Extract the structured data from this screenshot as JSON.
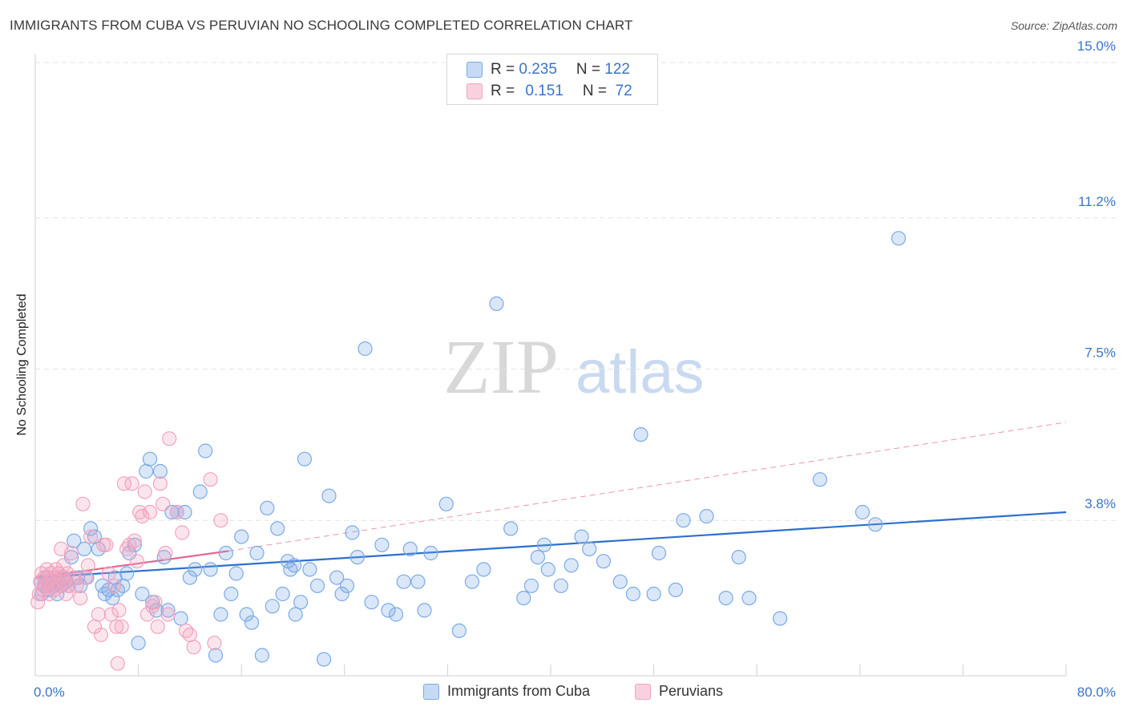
{
  "title": "IMMIGRANTS FROM CUBA VS PERUVIAN NO SCHOOLING COMPLETED CORRELATION CHART",
  "source": "Source: ZipAtlas.com",
  "watermark": {
    "zip": "ZIP",
    "atlas": "atlas"
  },
  "legend": {
    "rows": [
      {
        "r_label": "R = ",
        "r_value": "0.235",
        "n_label": "N = ",
        "n_value": "122"
      },
      {
        "r_label": "R = ",
        "r_value": "0.151",
        "n_label": "N = ",
        "n_value": " 72"
      }
    ]
  },
  "chart_data": {
    "type": "scatter",
    "xlabel": "",
    "ylabel": "No Schooling Completed",
    "xlim": [
      0,
      80
    ],
    "ylim": [
      0,
      15
    ],
    "x_tick_labels": [
      "0.0%",
      "80.0%"
    ],
    "y_ticks": [
      {
        "value": 3.8,
        "label": "3.8%"
      },
      {
        "value": 7.5,
        "label": "7.5%"
      },
      {
        "value": 11.2,
        "label": "11.2%"
      },
      {
        "value": 15.0,
        "label": "15.0%"
      }
    ],
    "grid": "horizontal dashed",
    "legend_position": "top-center",
    "colors": {
      "cuba": "#7aaae6",
      "peru": "#f2a3bd",
      "cuba_line": "#2d6fcf",
      "peru_line": "#e36591"
    },
    "series": [
      {
        "name": "Immigrants from Cuba",
        "R": 0.235,
        "N": 122,
        "trend": {
          "x": [
            0,
            80
          ],
          "y": [
            2.4,
            4.0
          ]
        },
        "points": [
          [
            0.4,
            2.3
          ],
          [
            0.5,
            2.0
          ],
          [
            0.7,
            2.2
          ],
          [
            0.9,
            2.4
          ],
          [
            1.0,
            2.1
          ],
          [
            1.2,
            2.3
          ],
          [
            1.4,
            2.2
          ],
          [
            1.5,
            2.4
          ],
          [
            1.7,
            2.0
          ],
          [
            1.8,
            2.3
          ],
          [
            2.0,
            2.2
          ],
          [
            2.2,
            2.4
          ],
          [
            2.4,
            2.3
          ],
          [
            2.6,
            2.2
          ],
          [
            2.8,
            2.9
          ],
          [
            3.0,
            3.3
          ],
          [
            3.3,
            2.4
          ],
          [
            3.5,
            2.2
          ],
          [
            3.8,
            3.1
          ],
          [
            4.0,
            2.4
          ],
          [
            4.3,
            3.6
          ],
          [
            4.6,
            3.4
          ],
          [
            4.9,
            3.1
          ],
          [
            5.2,
            2.2
          ],
          [
            5.4,
            2.0
          ],
          [
            5.7,
            2.1
          ],
          [
            6.0,
            1.9
          ],
          [
            6.2,
            2.4
          ],
          [
            6.4,
            2.1
          ],
          [
            6.8,
            2.2
          ],
          [
            7.1,
            2.5
          ],
          [
            7.3,
            3.0
          ],
          [
            7.7,
            3.2
          ],
          [
            8.0,
            0.8
          ],
          [
            8.3,
            2.0
          ],
          [
            8.6,
            5.0
          ],
          [
            8.9,
            5.3
          ],
          [
            9.1,
            1.8
          ],
          [
            9.4,
            1.6
          ],
          [
            9.7,
            5.0
          ],
          [
            10.0,
            2.9
          ],
          [
            10.3,
            1.6
          ],
          [
            10.6,
            4.0
          ],
          [
            11.0,
            4.0
          ],
          [
            11.3,
            1.4
          ],
          [
            11.6,
            4.0
          ],
          [
            12.0,
            2.4
          ],
          [
            12.4,
            2.6
          ],
          [
            12.8,
            4.5
          ],
          [
            13.2,
            5.5
          ],
          [
            13.6,
            2.6
          ],
          [
            14.0,
            0.5
          ],
          [
            14.4,
            1.5
          ],
          [
            14.8,
            3.0
          ],
          [
            15.2,
            2.0
          ],
          [
            15.6,
            2.5
          ],
          [
            16.0,
            3.4
          ],
          [
            16.4,
            1.5
          ],
          [
            16.8,
            1.3
          ],
          [
            17.2,
            3.0
          ],
          [
            17.6,
            0.5
          ],
          [
            18.0,
            4.1
          ],
          [
            18.4,
            1.7
          ],
          [
            18.8,
            3.6
          ],
          [
            19.2,
            2.0
          ],
          [
            19.6,
            2.8
          ],
          [
            19.8,
            2.6
          ],
          [
            20.2,
            1.5
          ],
          [
            20.6,
            1.8
          ],
          [
            20.9,
            5.3
          ],
          [
            21.3,
            2.6
          ],
          [
            21.9,
            2.2
          ],
          [
            22.4,
            0.4
          ],
          [
            22.8,
            4.4
          ],
          [
            23.4,
            2.4
          ],
          [
            23.8,
            2.0
          ],
          [
            24.2,
            2.2
          ],
          [
            24.6,
            3.5
          ],
          [
            25.0,
            2.9
          ],
          [
            25.6,
            8.0
          ],
          [
            26.1,
            1.8
          ],
          [
            26.9,
            3.2
          ],
          [
            27.4,
            1.6
          ],
          [
            28.0,
            1.5
          ],
          [
            28.6,
            2.3
          ],
          [
            29.1,
            3.1
          ],
          [
            29.7,
            2.3
          ],
          [
            30.2,
            1.6
          ],
          [
            30.7,
            3.0
          ],
          [
            31.9,
            4.2
          ],
          [
            32.9,
            1.1
          ],
          [
            33.9,
            2.3
          ],
          [
            34.8,
            2.6
          ],
          [
            35.8,
            9.1
          ],
          [
            36.9,
            3.6
          ],
          [
            37.9,
            1.9
          ],
          [
            38.5,
            2.2
          ],
          [
            39.0,
            2.9
          ],
          [
            39.5,
            3.2
          ],
          [
            39.8,
            2.6
          ],
          [
            40.8,
            2.2
          ],
          [
            41.6,
            2.7
          ],
          [
            42.4,
            3.4
          ],
          [
            43.0,
            3.1
          ],
          [
            44.1,
            2.8
          ],
          [
            45.4,
            2.3
          ],
          [
            46.4,
            2.0
          ],
          [
            47.0,
            5.9
          ],
          [
            48.0,
            2.0
          ],
          [
            48.4,
            3.0
          ],
          [
            49.7,
            2.1
          ],
          [
            50.3,
            3.8
          ],
          [
            52.1,
            3.9
          ],
          [
            53.6,
            1.9
          ],
          [
            54.6,
            2.9
          ],
          [
            55.4,
            1.9
          ],
          [
            57.8,
            1.4
          ],
          [
            60.9,
            4.8
          ],
          [
            64.2,
            4.0
          ],
          [
            65.2,
            3.7
          ],
          [
            67.0,
            10.7
          ],
          [
            20.1,
            2.7
          ]
        ]
      },
      {
        "name": "Peruvians",
        "R": 0.151,
        "N": 72,
        "trend": {
          "x": [
            0,
            15
          ],
          "y": [
            2.4,
            3.05
          ]
        },
        "dashed_extension": {
          "x": [
            15,
            80
          ],
          "y": [
            3.05,
            6.2
          ]
        },
        "points": [
          [
            0.2,
            1.8
          ],
          [
            0.3,
            2.0
          ],
          [
            0.4,
            2.3
          ],
          [
            0.5,
            2.5
          ],
          [
            0.6,
            2.1
          ],
          [
            0.7,
            2.4
          ],
          [
            0.8,
            2.2
          ],
          [
            0.9,
            2.6
          ],
          [
            1.0,
            2.3
          ],
          [
            1.1,
            2.0
          ],
          [
            1.2,
            2.5
          ],
          [
            1.3,
            2.2
          ],
          [
            1.4,
            2.4
          ],
          [
            1.5,
            2.1
          ],
          [
            1.6,
            2.6
          ],
          [
            1.7,
            2.3
          ],
          [
            1.8,
            2.5
          ],
          [
            1.9,
            2.2
          ],
          [
            2.0,
            3.1
          ],
          [
            2.1,
            2.4
          ],
          [
            2.2,
            2.7
          ],
          [
            2.3,
            2.3
          ],
          [
            2.4,
            2.0
          ],
          [
            2.5,
            2.5
          ],
          [
            2.6,
            2.2
          ],
          [
            2.8,
            3.0
          ],
          [
            3.0,
            2.4
          ],
          [
            3.2,
            2.2
          ],
          [
            3.5,
            1.9
          ],
          [
            3.7,
            4.2
          ],
          [
            3.9,
            2.4
          ],
          [
            4.1,
            2.7
          ],
          [
            4.3,
            3.4
          ],
          [
            4.6,
            1.2
          ],
          [
            4.9,
            1.5
          ],
          [
            5.1,
            1.0
          ],
          [
            5.3,
            3.2
          ],
          [
            5.5,
            3.2
          ],
          [
            5.7,
            2.5
          ],
          [
            5.9,
            1.5
          ],
          [
            6.1,
            2.2
          ],
          [
            6.3,
            1.2
          ],
          [
            6.5,
            1.6
          ],
          [
            6.7,
            1.2
          ],
          [
            6.9,
            4.7
          ],
          [
            7.1,
            3.1
          ],
          [
            7.3,
            3.2
          ],
          [
            7.5,
            4.7
          ],
          [
            7.7,
            3.3
          ],
          [
            7.9,
            2.8
          ],
          [
            8.1,
            4.0
          ],
          [
            8.3,
            3.9
          ],
          [
            8.5,
            4.5
          ],
          [
            8.7,
            1.5
          ],
          [
            8.9,
            4.0
          ],
          [
            9.1,
            1.7
          ],
          [
            9.3,
            1.8
          ],
          [
            9.5,
            1.2
          ],
          [
            9.7,
            4.7
          ],
          [
            9.9,
            4.2
          ],
          [
            10.1,
            3.0
          ],
          [
            10.3,
            1.5
          ],
          [
            11.0,
            4.0
          ],
          [
            11.4,
            3.5
          ],
          [
            11.7,
            1.1
          ],
          [
            12.0,
            1.0
          ],
          [
            12.3,
            0.7
          ],
          [
            13.6,
            4.8
          ],
          [
            13.9,
            0.8
          ],
          [
            14.4,
            3.8
          ],
          [
            6.4,
            0.3
          ],
          [
            10.4,
            5.8
          ]
        ]
      }
    ]
  }
}
